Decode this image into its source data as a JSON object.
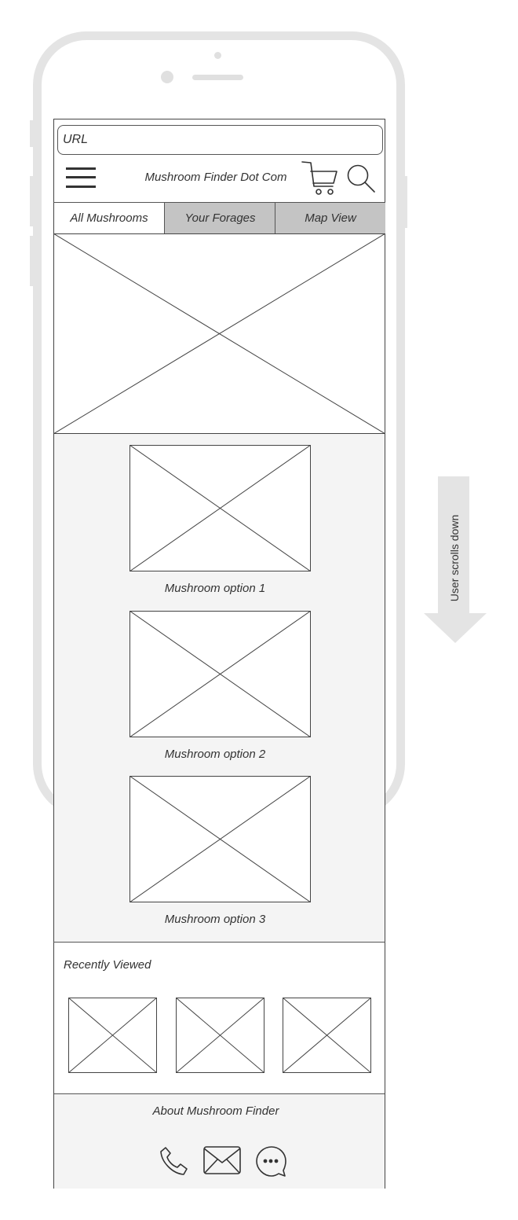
{
  "browser": {
    "url_placeholder": "URL"
  },
  "header": {
    "title": "Mushroom Finder Dot Com",
    "icons": [
      "hamburger-menu-icon",
      "cart-icon",
      "search-icon"
    ]
  },
  "tabs": [
    {
      "label": "All Mushrooms",
      "active": true
    },
    {
      "label": "Your Forages",
      "active": false
    },
    {
      "label": "Map View",
      "active": false
    }
  ],
  "mushroom_options": [
    {
      "caption": "Mushroom option 1"
    },
    {
      "caption": "Mushroom option 2"
    },
    {
      "caption": "Mushroom option 3"
    }
  ],
  "recently_viewed": {
    "heading": "Recently Viewed",
    "count": 3
  },
  "footer": {
    "about": "About Mushroom Finder",
    "icons": [
      "phone-icon",
      "mail-icon",
      "chat-icon"
    ]
  },
  "annotation": {
    "scroll_label": "User scrolls down"
  },
  "colors": {
    "frame": "#e4e4e4",
    "tab_inactive": "#c4c4c4",
    "section_gray": "#f4f4f4",
    "arrow": "#e4e4e4"
  }
}
